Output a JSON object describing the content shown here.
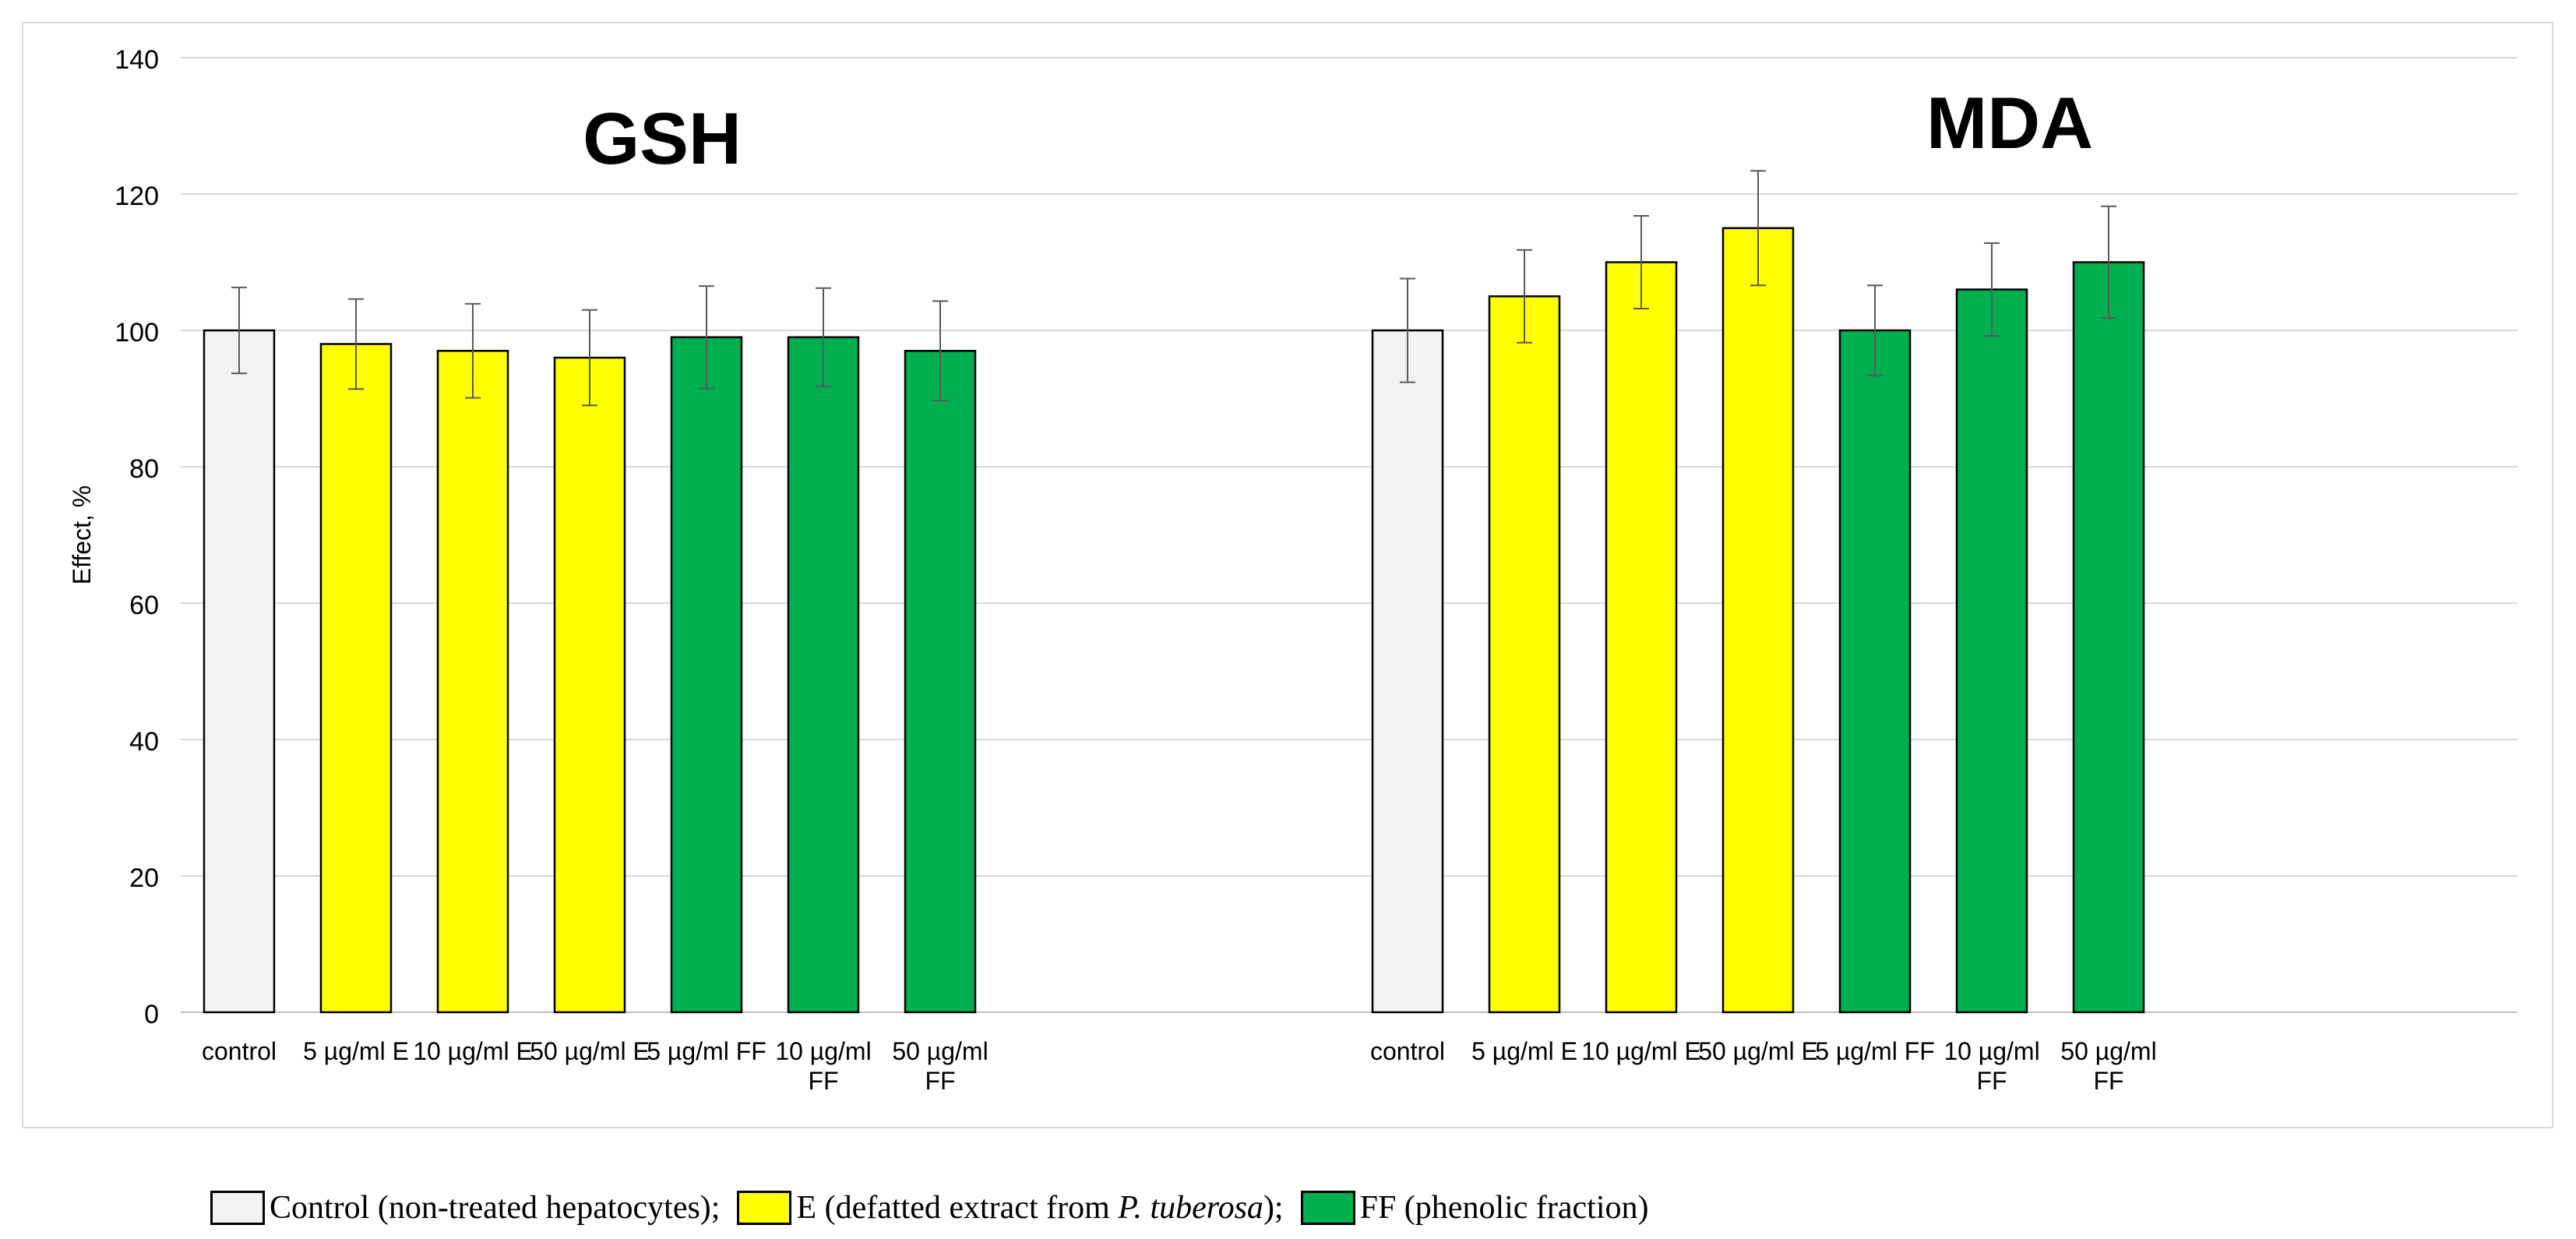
{
  "chart_data": {
    "type": "bar",
    "ylabel": "Effect, %",
    "ylim": [
      0,
      140
    ],
    "yticks": [
      0,
      20,
      40,
      60,
      80,
      100,
      120,
      140
    ],
    "grid": true,
    "colors": {
      "control": "#f2f2f2",
      "E": "#ffff00",
      "FF": "#00b050",
      "outline": "#000000",
      "grid": "#d9d9d9",
      "error_bar": "#595959"
    },
    "groups": [
      {
        "title": "GSH",
        "bars": [
          {
            "category": [
              "control"
            ],
            "value": 100,
            "error": 6.3,
            "kind": "control"
          },
          {
            "category": [
              "5 µg/ml E"
            ],
            "value": 98,
            "error": 6.6,
            "kind": "E"
          },
          {
            "category": [
              "10 µg/ml E"
            ],
            "value": 97,
            "error": 6.9,
            "kind": "E"
          },
          {
            "category": [
              "50 µg/ml E"
            ],
            "value": 96,
            "error": 7.0,
            "kind": "E"
          },
          {
            "category": [
              "5 µg/ml FF"
            ],
            "value": 99,
            "error": 7.5,
            "kind": "FF"
          },
          {
            "category": [
              "10 µg/ml",
              "FF"
            ],
            "value": 99,
            "error": 7.2,
            "kind": "FF"
          },
          {
            "category": [
              "50 µg/ml",
              "FF"
            ],
            "value": 97,
            "error": 7.3,
            "kind": "FF"
          }
        ]
      },
      {
        "title": "MDA",
        "bars": [
          {
            "category": [
              "control"
            ],
            "value": 100,
            "error": 7.6,
            "kind": "control"
          },
          {
            "category": [
              "5 µg/ml E"
            ],
            "value": 105,
            "error": 6.8,
            "kind": "E"
          },
          {
            "category": [
              "10 µg/ml E"
            ],
            "value": 110,
            "error": 6.8,
            "kind": "E"
          },
          {
            "category": [
              "50 µg/ml E"
            ],
            "value": 115,
            "error": 8.4,
            "kind": "E"
          },
          {
            "category": [
              "5 µg/ml FF"
            ],
            "value": 100,
            "error": 6.6,
            "kind": "FF"
          },
          {
            "category": [
              "10 µg/ml",
              "FF"
            ],
            "value": 106,
            "error": 6.8,
            "kind": "FF"
          },
          {
            "category": [
              "50 µg/ml",
              "FF"
            ],
            "value": 110,
            "error": 8.2,
            "kind": "FF"
          }
        ]
      }
    ]
  },
  "legend": {
    "control_label": "Control (non-treated hepatocytes);",
    "e_label_before": "E (defatted extract from ",
    "e_label_species": "P. tuberosa",
    "e_label_after": ");",
    "ff_label": "FF (phenolic fraction)"
  }
}
